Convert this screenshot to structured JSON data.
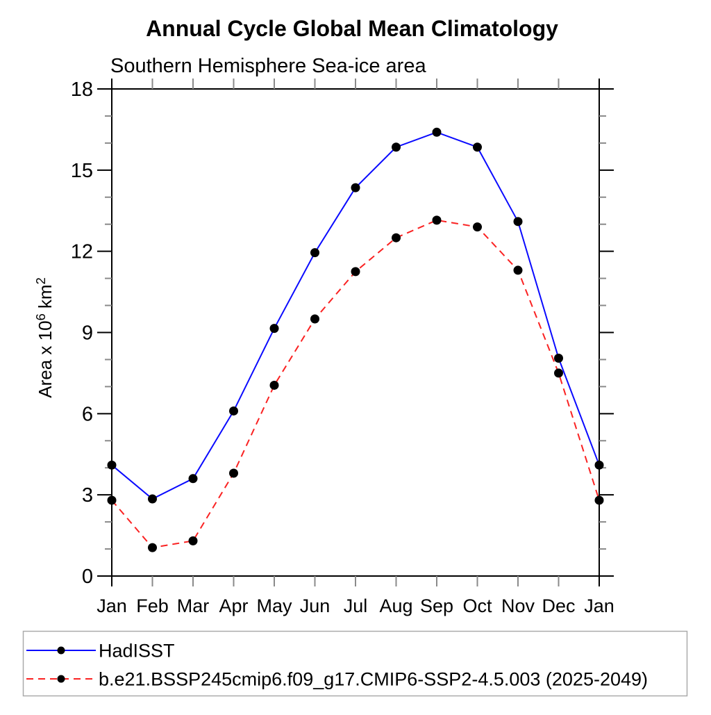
{
  "chart_data": {
    "type": "line",
    "title": "Annual Cycle Global Mean Climatology",
    "subtitle": "Southern Hemisphere Sea-ice area",
    "xlabel": "",
    "ylabel": "Area x 10^6 km^2",
    "categories": [
      "Jan",
      "Feb",
      "Mar",
      "Apr",
      "May",
      "Jun",
      "Jul",
      "Aug",
      "Sep",
      "Oct",
      "Nov",
      "Dec",
      "Jan"
    ],
    "ylim": [
      0,
      18
    ],
    "y_major_ticks": [
      0,
      3,
      6,
      9,
      12,
      15,
      18
    ],
    "y_minor_step": 1,
    "grid": false,
    "legend_position": "bottom-left-box",
    "colors": {
      "axis": "#000000",
      "minor_tick": "#8a8a8a",
      "legend_border": "#aaaaaa",
      "marker": "#000000"
    },
    "series": [
      {
        "name": "HadISST",
        "color": "#0a0aff",
        "style": "solid",
        "marker": "filled-circle",
        "values": [
          4.1,
          2.85,
          3.6,
          6.1,
          9.15,
          11.95,
          14.35,
          15.85,
          16.4,
          15.85,
          13.1,
          8.05,
          4.1
        ]
      },
      {
        "name": "b.e21.BSSP245cmip6.f09_g17.CMIP6-SSP2-4.5.003 (2025-2049)",
        "color": "#fa2222",
        "style": "dashed",
        "marker": "filled-circle",
        "values": [
          2.8,
          1.05,
          1.3,
          3.8,
          7.05,
          9.5,
          11.25,
          12.5,
          13.15,
          12.9,
          11.3,
          7.5,
          2.8
        ]
      }
    ]
  }
}
